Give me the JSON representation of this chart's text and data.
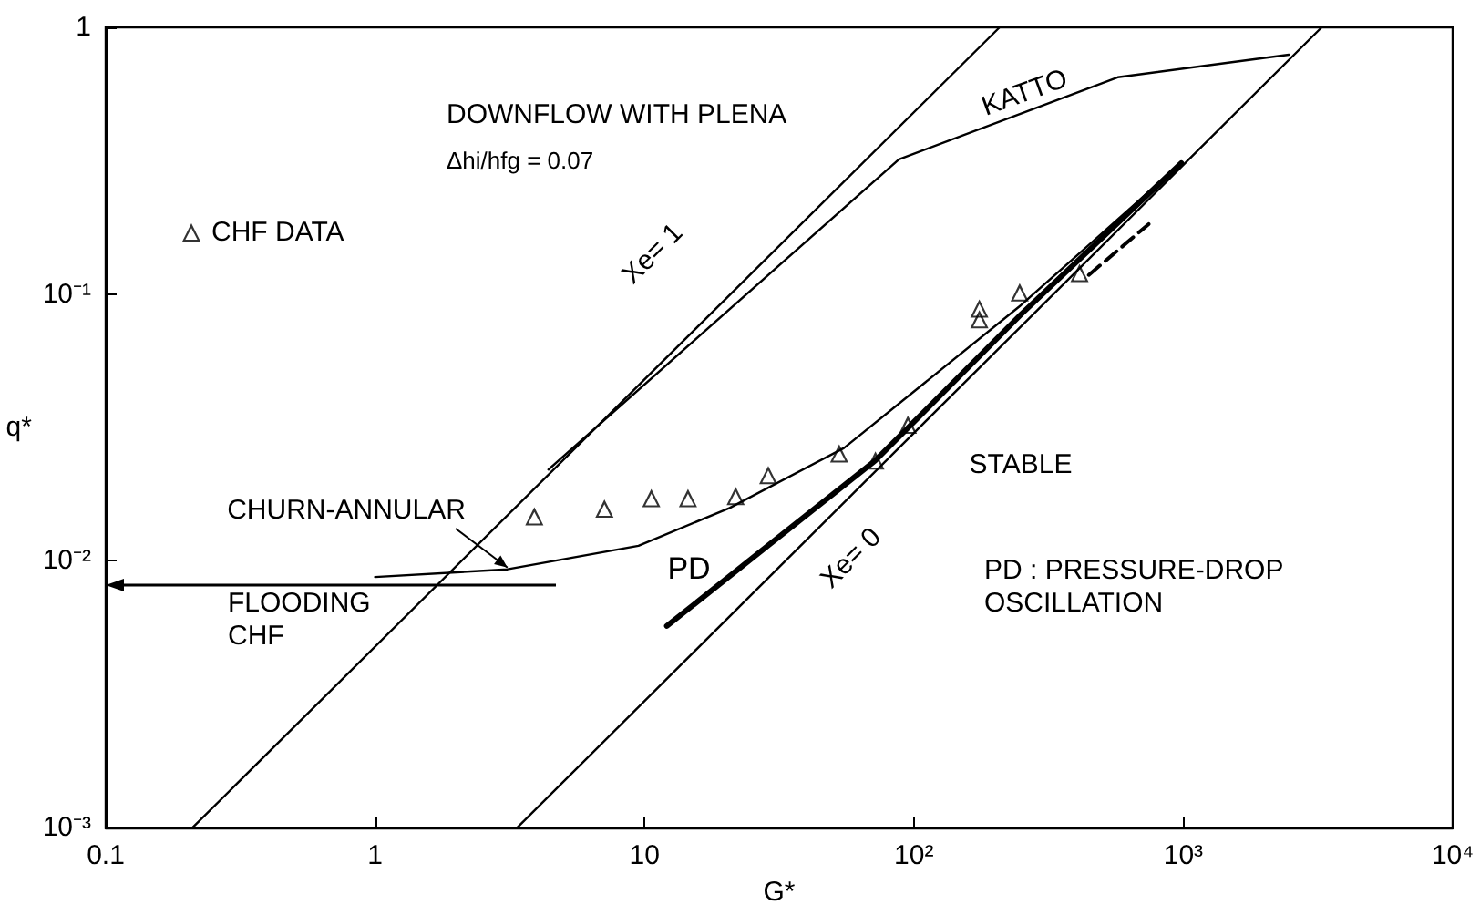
{
  "chart_data": {
    "type": "line",
    "xlabel": "G*",
    "ylabel": "q*",
    "log": "xy",
    "xlim": [
      0.1,
      10000
    ],
    "ylim": [
      0.001,
      1
    ],
    "xticks": [
      0.1,
      1,
      10,
      {
        "value": 100,
        "label": "10²"
      },
      {
        "value": 1000,
        "label": "10³"
      },
      {
        "value": 10000,
        "label": "10⁴"
      }
    ],
    "yticks": [
      {
        "value": 0.001,
        "label": "10⁻³"
      },
      {
        "value": 0.01,
        "label": "10⁻²"
      },
      {
        "value": 0.1,
        "label": "10⁻¹"
      },
      1
    ],
    "grid": false,
    "legend": "top left",
    "marker": "none",
    "line_style": "solid",
    "series": [
      {
        "color": "#000000",
        "x": [
          0.21,
          208
        ],
        "values": [
          0.001,
          1
        ]
      },
      {
        "color": "#000000",
        "x": [
          4.4,
          88,
          571,
          2466
        ],
        "values": [
          0.022,
          0.32,
          0.65,
          0.79
        ]
      },
      {
        "color": "#000000",
        "x": [
          3.37,
          3263
        ],
        "values": [
          0.001,
          1
        ]
      },
      {
        "color": "#000000",
        "x": [
          1,
          3.1,
          9.5,
          20.7,
          55,
          250,
          983
        ],
        "values": [
          0.0087,
          0.0093,
          0.0114,
          0.0158,
          0.0265,
          0.091,
          0.31
        ]
      },
      {
        "color": "#000000",
        "x": [
          12.1,
          28.4,
          72,
          250,
          983
        ],
        "values": [
          0.0057,
          0.0113,
          0.0238,
          0.084,
          0.31
        ]
      },
      {
        "color": "#000000",
        "line_style": "dashed",
        "x": [
          446,
          744
        ],
        "values": [
          0.118,
          0.183
        ]
      },
      {
        "type": "scatter",
        "name": "CHF DATA",
        "color": "#000000",
        "marker": "triangle",
        "x": [
          3.9,
          7.1,
          10.6,
          14.5,
          21.8,
          28.8,
          52.8,
          72,
          95,
          175,
          175,
          247,
          412
        ],
        "values": [
          0.0147,
          0.0157,
          0.0172,
          0.0172,
          0.0175,
          0.021,
          0.0253,
          0.0238,
          0.0324,
          0.0884,
          0.0805,
          0.1016,
          0.12
        ]
      }
    ],
    "annotations": [
      "DOWNFLOW WITH PLENA",
      "Δhi/hfg = 0.07",
      {
        "text": "Xe= 1",
        "x": 20,
        "y": 0.097
      },
      {
        "text": "KATTO",
        "x": 250,
        "y": 0.47
      },
      "STABLE",
      {
        "text": "Xe= 0",
        "x": 50,
        "y": 0.0154
      },
      "PD",
      "PD : PRESSURE-DROP\nOSCILLATION",
      {
        "text": "CHURN-ANNULAR",
        "x": 3.1,
        "y": 0.0093
      },
      "FLOODING\nCHF"
    ]
  }
}
